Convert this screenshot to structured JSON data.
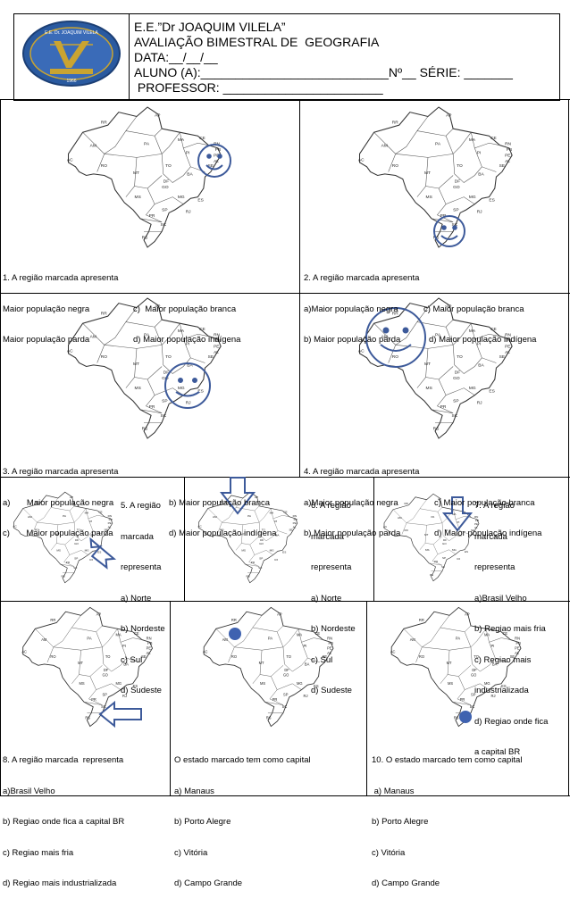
{
  "header": {
    "school": "E.E.”Dr JOAQUIM VILELA”",
    "exam": "AVALIAÇÃO BIMESTRAL DE  GEOGRAFIA",
    "date": "DATA:__/__/__",
    "student": "ALUNO (A):___________________________Nº__ SÉRIE: _______",
    "teacher": " PROFESSOR: _______________________"
  },
  "logo": {
    "letter": "V",
    "top_text": "E.E. Dr. JOAQUIM VILELA",
    "bottom_text": "1966"
  },
  "map_labels": [
    "RR",
    "AP",
    "AM",
    "PA",
    "MA",
    "CE",
    "RN",
    "PB",
    "PE",
    "AL",
    "SE",
    "PI",
    "AC",
    "RO",
    "TO",
    "BA",
    "MT",
    "DF",
    "GO",
    "MG",
    "ES",
    "MS",
    "SP",
    "RJ",
    "PR",
    "SC",
    "RS"
  ],
  "questions": {
    "q1": {
      "title": "1. A região marcada apresenta",
      "l1a": "Maior população negra",
      "l1b": "c)  Maior população branca",
      "l2a": "Maior população parda",
      "l2b": "d) Maior população indígena"
    },
    "q2": {
      "title": "2. A região marcada apresenta",
      "l1a": "a)Maior população negra",
      "l1b": "c) Maior população branca",
      "l2a": "b) Maior população parda",
      "l2b": "d) Maior população indígena"
    },
    "q3": {
      "title": "3. A região marcada apresenta",
      "l1a": "a)       Maior população negra",
      "l1b": "b) Maior população branca",
      "l2a": "c)       Maior população parda",
      "l2b": "d) Maior população indígena"
    },
    "q4": {
      "title": "4. A região marcada apresenta",
      "l1a": "a)Maior população negra",
      "l1b": "c) Maior população branca",
      "l2a": "b) Maior população parda",
      "l2b": "d) Maior população indígena"
    },
    "q5": {
      "lines": [
        "5. A região",
        "marcada",
        "representa",
        "a) Norte",
        "b) Nordeste",
        "c) Sul",
        "d) Sudeste"
      ]
    },
    "q6": {
      "lines": [
        "6. A região",
        "marcada",
        "representa",
        "a) Norte",
        "b) Nordeste",
        "c) Sul",
        "d) Sudeste"
      ]
    },
    "q7": {
      "lines": [
        "7. A região",
        "marcada",
        "representa",
        "a)Brasil Velho",
        "b) Regiao mais fria",
        "c) Regiao mais",
        "industrializada",
        "d) Regiao onde fica",
        "a capital BR"
      ]
    },
    "q8": {
      "lines": [
        "8. A região marcada  representa",
        "a)Brasil Velho",
        "b) Regiao onde fica a capital BR",
        "c) Regiao mais fria",
        "d) Regiao mais industrializada"
      ]
    },
    "q9": {
      "lines": [
        "O estado marcado tem como capital",
        "a) Manaus",
        "b) Porto Alegre",
        "c) Vitória",
        "d) Campo Grande"
      ]
    },
    "q10": {
      "lines": [
        "10. O estado marcado tem como capital",
        " a) Manaus",
        "b) Porto Alegre",
        "c) Vitória",
        "d) Campo Grande"
      ]
    }
  },
  "colors": {
    "marker": "#3d5a9a",
    "marker_fill": "#3f62b0",
    "logo_bg": "#2a5aa0",
    "logo_gold": "#c9a431"
  }
}
